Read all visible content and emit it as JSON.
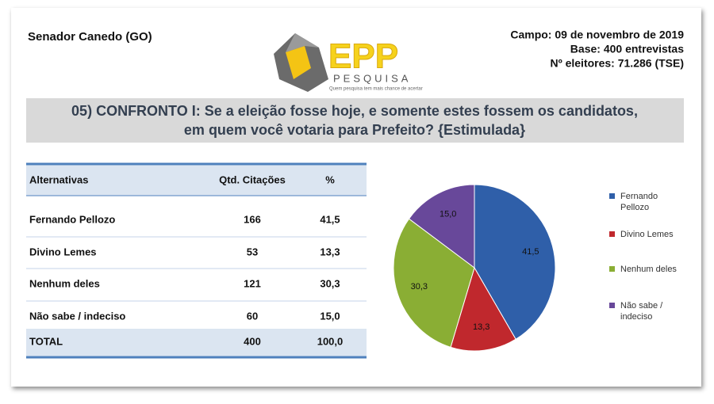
{
  "header": {
    "location": "Senador Canedo (GO)",
    "campo": "Campo: 09 de novembro de 2019",
    "base": "Base: 400 entrevistas",
    "eleitores": "Nº eleitores: 71.286  (TSE)",
    "logo": "EPP",
    "logo_sub": "PESQUISA",
    "tagline": "Quem pesquisa tem mais chance de acertar"
  },
  "question": [
    "05) CONFRONTO I: Se a eleição fosse hoje, e somente estes fossem os candidatos,",
    "em quem você votaria para Prefeito? {Estimulada}"
  ],
  "table": {
    "columns": [
      "Alternativas",
      "Qtd. Citações",
      "%"
    ],
    "rows": [
      [
        "Fernando Pellozo",
        "166",
        "41,5"
      ],
      [
        "Divino Lemes",
        "53",
        "13,3"
      ],
      [
        "Nenhum deles",
        "121",
        "30,3"
      ],
      [
        "Não sabe / indeciso",
        "60",
        "15,0"
      ],
      [
        "TOTAL",
        "400",
        "100,0"
      ]
    ]
  },
  "chart_data": {
    "type": "pie",
    "categories": [
      "Fernando Pellozo",
      "Divino Lemes",
      "Nenhum deles",
      "Não sabe / indeciso"
    ],
    "values": [
      41.5,
      13.3,
      30.3,
      15.0
    ],
    "value_labels": [
      "41,5",
      "13,3",
      "30,3",
      "15,0"
    ],
    "colors": [
      "#2f5fa9",
      "#c0282d",
      "#8aae34",
      "#68489a"
    ],
    "legend": "right"
  }
}
